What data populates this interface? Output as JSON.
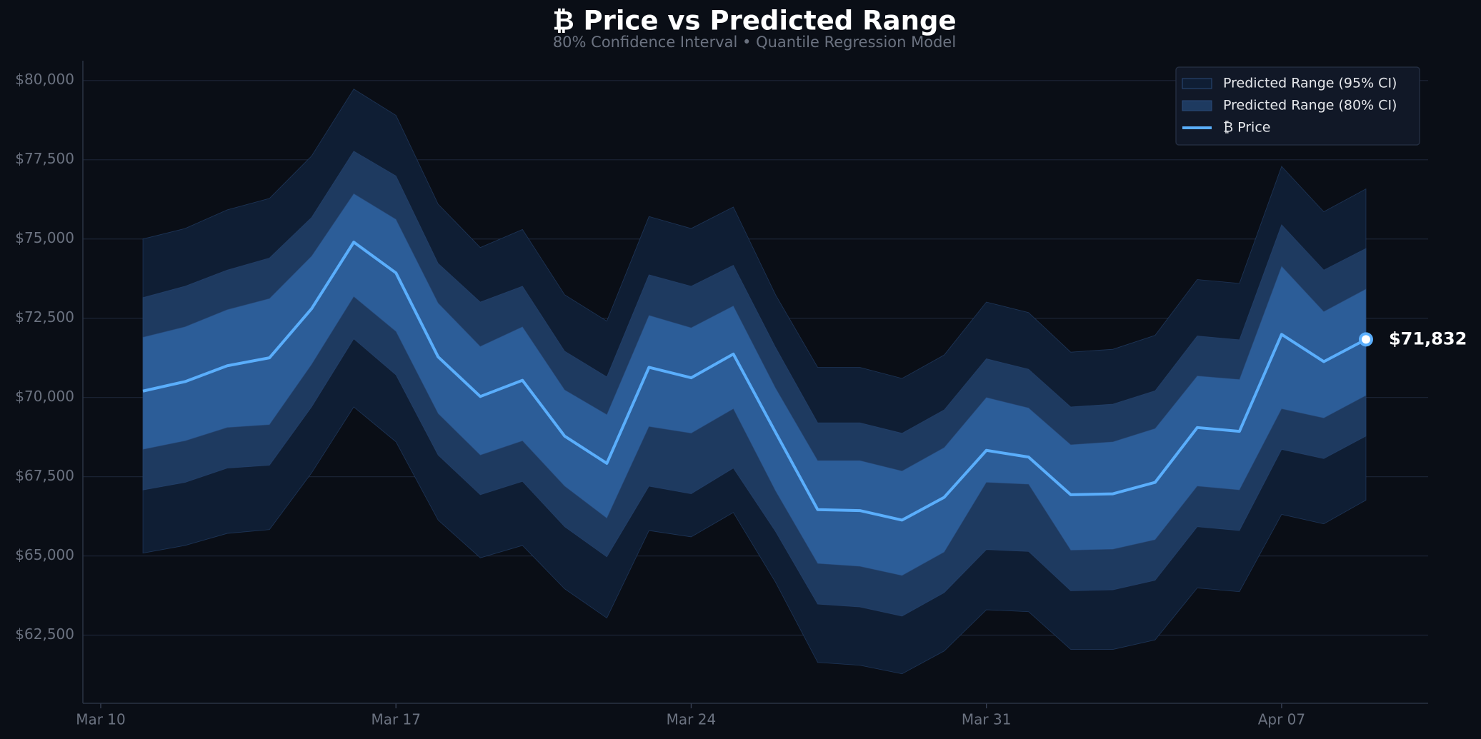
{
  "chart_data": {
    "type": "line",
    "title": "₿ Price vs Predicted Range",
    "subtitle": "80% Confidence Interval  •  Quantile Regression Model",
    "x": [
      "Mar 11",
      "Mar 12",
      "Mar 13",
      "Mar 14",
      "Mar 15",
      "Mar 16",
      "Mar 17",
      "Mar 18",
      "Mar 19",
      "Mar 20",
      "Mar 21",
      "Mar 22",
      "Mar 23",
      "Mar 24",
      "Mar 25",
      "Mar 26",
      "Mar 27",
      "Mar 28",
      "Mar 29",
      "Mar 30",
      "Mar 31",
      "Apr 01",
      "Apr 02",
      "Apr 03",
      "Apr 04",
      "Apr 05",
      "Apr 06",
      "Apr 07",
      "Apr 08",
      "Apr 09"
    ],
    "xlim": [
      "Mar 10",
      "Apr 10"
    ],
    "xticks": [
      "Mar 10",
      "Mar 17",
      "Mar 24",
      "Mar 31",
      "Apr 07"
    ],
    "ylim": [
      60350,
      80625
    ],
    "yticks": [
      {
        "value": 62500,
        "label": "$62,500"
      },
      {
        "value": 65000,
        "label": "$65,000"
      },
      {
        "value": 67500,
        "label": "$67,500"
      },
      {
        "value": 70000,
        "label": "$70,000"
      },
      {
        "value": 72500,
        "label": "$72,500"
      },
      {
        "value": 75000,
        "label": "$75,000"
      },
      {
        "value": 77500,
        "label": "$77,500"
      },
      {
        "value": 80000,
        "label": "$80,000"
      }
    ],
    "grid": true,
    "legend": "upper right",
    "bands": [
      {
        "name": "Predicted Range (95% CI)",
        "color": "#0f1e34",
        "upper": [
          75000,
          75330,
          75920,
          76280,
          77620,
          79730,
          78900,
          76100,
          74730,
          75300,
          73240,
          72410,
          75710,
          75330,
          76010,
          73240,
          70950,
          70950,
          70600,
          71340,
          73010,
          72680,
          71430,
          71520,
          71960,
          73720,
          73600,
          77290,
          75860,
          76580
        ],
        "lower": [
          65090,
          65330,
          65710,
          65830,
          67620,
          69700,
          68600,
          66130,
          64940,
          65330,
          63960,
          63040,
          65800,
          65600,
          66370,
          64170,
          61640,
          61550,
          61280,
          62000,
          63300,
          63240,
          62050,
          62050,
          62350,
          63990,
          63870,
          66310,
          66010,
          66760
        ]
      },
      {
        "name": "Predicted Range (80% CI)",
        "color": "#1e3a60",
        "upper": [
          73150,
          73510,
          74020,
          74400,
          75680,
          77770,
          76990,
          74230,
          73010,
          73510,
          71460,
          70650,
          73870,
          73510,
          74170,
          71580,
          69200,
          69200,
          68870,
          69610,
          71220,
          70890,
          69700,
          69790,
          70210,
          71940,
          71820,
          75450,
          74020,
          74700
        ],
        "lower": [
          67080,
          67320,
          67770,
          67860,
          69700,
          71850,
          70710,
          68180,
          66930,
          67350,
          65920,
          64970,
          67200,
          66960,
          67770,
          65770,
          63480,
          63390,
          63100,
          63840,
          65200,
          65140,
          63900,
          63930,
          64230,
          65920,
          65800,
          68360,
          68070,
          68780
        ]
      },
      {
        "color": "#2c5d98",
        "upper": [
          71900,
          72230,
          72770,
          73120,
          74460,
          76430,
          75620,
          72980,
          71610,
          72230,
          70240,
          69460,
          72590,
          72200,
          72890,
          70300,
          68010,
          68010,
          67680,
          68420,
          70000,
          69670,
          68510,
          68600,
          69020,
          70680,
          70570,
          74140,
          72710,
          73420
        ],
        "lower": [
          68360,
          68630,
          69050,
          69140,
          71040,
          73180,
          72080,
          69490,
          68180,
          68630,
          67200,
          66190,
          69080,
          68870,
          69640,
          67050,
          64760,
          64670,
          64380,
          65120,
          67320,
          67260,
          65180,
          65210,
          65510,
          67200,
          67080,
          69640,
          69350,
          70060
        ]
      }
    ],
    "series": [
      {
        "name": "₿ Price",
        "color": "#5aaefc",
        "values": [
          70200,
          70500,
          71000,
          71250,
          72800,
          74900,
          73930,
          71280,
          70030,
          70540,
          68780,
          67920,
          70950,
          70620,
          71370,
          68900,
          66460,
          66430,
          66130,
          66850,
          68330,
          68120,
          66930,
          66960,
          67320,
          69050,
          68930,
          71990,
          71130,
          71832
        ],
        "value_labels": [
          null,
          null,
          null,
          null,
          null,
          null,
          null,
          null,
          null,
          null,
          null,
          null,
          null,
          null,
          null,
          null,
          null,
          null,
          null,
          null,
          null,
          null,
          null,
          null,
          null,
          null,
          null,
          null,
          null,
          "$71,832"
        ]
      }
    ]
  }
}
